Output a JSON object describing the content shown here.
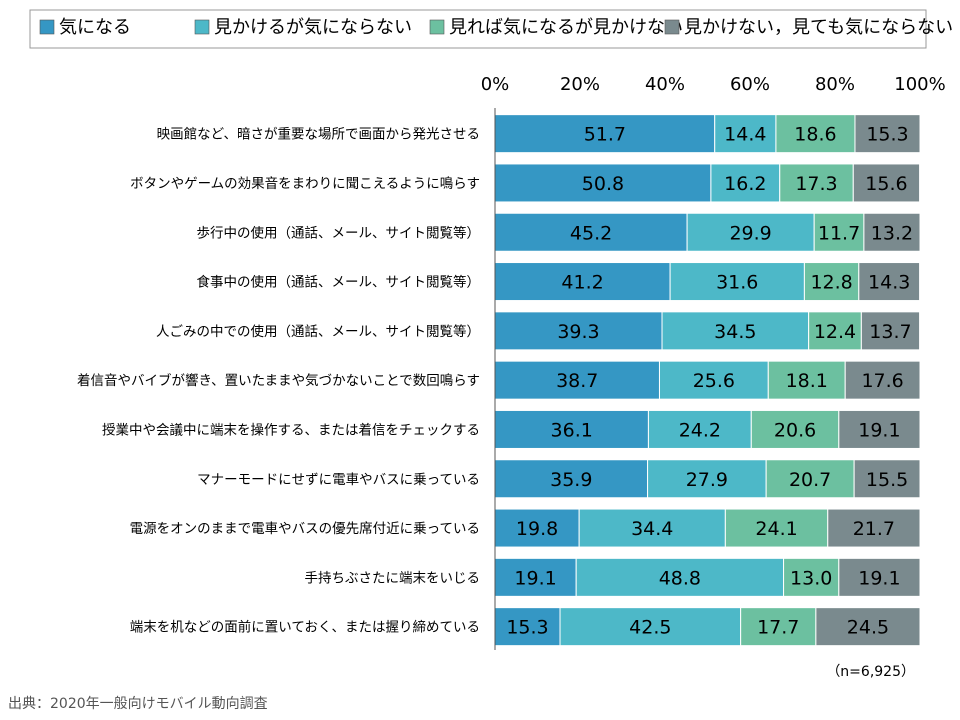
{
  "chart_data": {
    "type": "bar",
    "orientation": "horizontal",
    "stacked": "percent",
    "legend_position": "top",
    "grid": false,
    "xlim": [
      0,
      100
    ],
    "tick_labels": [
      "0%",
      "20%",
      "40%",
      "60%",
      "80%",
      "100%"
    ],
    "categories": [
      "映画館など、暗さが重要な場所で画面から発光させる",
      "ボタンやゲームの効果音をまわりに聞こえるように鳴らす",
      "歩行中の使用（通話、メール、サイト閲覧等）",
      "食事中の使用（通話、メール、サイト閲覧等）",
      "人ごみの中での使用（通話、メール、サイト閲覧等）",
      "着信音やバイブが響き、置いたままや気づかないことで数回鳴らす",
      "授業中や会議中に端末を操作する、または着信をチェックする",
      "マナーモードにせずに電車やバスに乗っている",
      "電源をオンのままで電車やバスの優先席付近に乗っている",
      "手持ちぶさたに端末をいじる",
      "端末を机などの面前に置いておく、または握り締めている"
    ],
    "series": [
      {
        "name": "気になる",
        "color": "#3597c4",
        "values": [
          51.7,
          50.8,
          45.2,
          41.2,
          39.3,
          38.7,
          36.1,
          35.9,
          19.8,
          19.1,
          15.3
        ]
      },
      {
        "name": "見かけるが気にならない",
        "color": "#4db8c8",
        "values": [
          14.4,
          16.2,
          29.9,
          31.6,
          34.5,
          25.6,
          24.2,
          27.9,
          34.4,
          48.8,
          42.5
        ]
      },
      {
        "name": "見れば気になるが見かけない",
        "color": "#6cc0a0",
        "values": [
          18.6,
          17.3,
          11.7,
          12.8,
          12.4,
          18.1,
          20.6,
          20.7,
          24.1,
          13.0,
          17.7
        ]
      },
      {
        "name": "見かけない，見ても気にならない",
        "color": "#7a8a8e",
        "values": [
          15.3,
          15.6,
          13.2,
          14.3,
          13.7,
          17.6,
          19.1,
          15.5,
          21.7,
          19.1,
          24.5
        ]
      }
    ],
    "annotation": "（n=6,925）",
    "source": "出典：2020年一般向けモバイル動向調査"
  }
}
